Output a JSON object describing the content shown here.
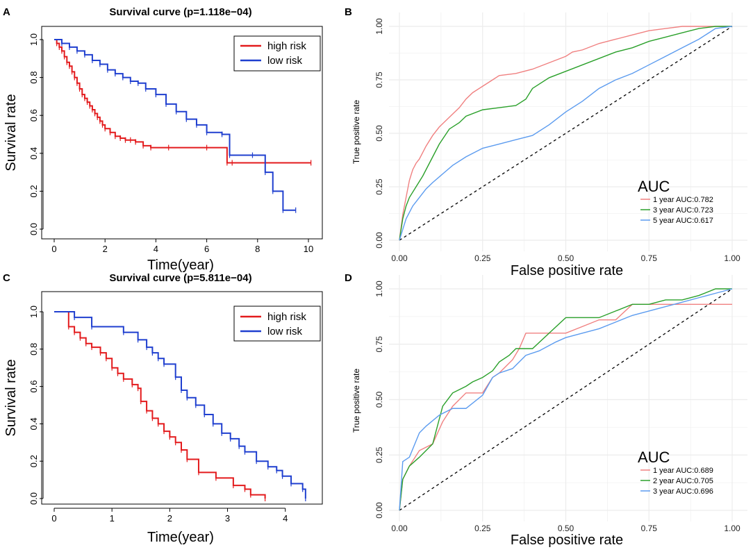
{
  "colors": {
    "high_risk": "#e31a1c",
    "low_risk": "#1f3fcf",
    "roc1": "#f08080",
    "roc2": "#2aa02a",
    "roc3": "#5b9bef",
    "grid": "#ececec",
    "panel_bg": "#ffffff"
  },
  "chart_data": [
    {
      "panel": "A",
      "type": "line",
      "subtype": "kaplan-meier",
      "title": "Survival curve (p=1.118e−04)",
      "xlabel": "Time(year)",
      "ylabel": "Survival rate",
      "xlim": [
        0,
        10
      ],
      "ylim": [
        0,
        1
      ],
      "xticks": [
        "0",
        "2",
        "4",
        "6",
        "8",
        "10"
      ],
      "yticks": [
        "0.0",
        "0.2",
        "0.4",
        "0.6",
        "0.8",
        "1.0"
      ],
      "legend_position": "top-right",
      "series": [
        {
          "name": "high risk",
          "color_key": "high_risk",
          "x": [
            0,
            0.1,
            0.2,
            0.3,
            0.4,
            0.5,
            0.6,
            0.7,
            0.8,
            0.9,
            1.0,
            1.1,
            1.2,
            1.3,
            1.4,
            1.5,
            1.6,
            1.7,
            1.8,
            1.9,
            2.0,
            2.2,
            2.4,
            2.6,
            2.8,
            3.0,
            3.2,
            3.5,
            3.8,
            4.5,
            6.0,
            6.8,
            7.0,
            10.1
          ],
          "y": [
            1.0,
            0.98,
            0.96,
            0.94,
            0.91,
            0.88,
            0.86,
            0.83,
            0.8,
            0.77,
            0.74,
            0.71,
            0.69,
            0.67,
            0.65,
            0.63,
            0.61,
            0.59,
            0.57,
            0.55,
            0.53,
            0.51,
            0.49,
            0.48,
            0.47,
            0.47,
            0.46,
            0.44,
            0.43,
            0.43,
            0.43,
            0.35,
            0.35,
            0.35
          ]
        },
        {
          "name": "low risk",
          "color_key": "low_risk",
          "x": [
            0,
            0.3,
            0.6,
            0.9,
            1.2,
            1.5,
            1.8,
            2.1,
            2.4,
            2.7,
            3.0,
            3.3,
            3.6,
            4.0,
            4.4,
            4.8,
            5.2,
            5.6,
            6.0,
            6.6,
            6.9,
            7.8,
            8.3,
            8.6,
            9.0,
            9.5
          ],
          "y": [
            1.0,
            0.98,
            0.96,
            0.94,
            0.92,
            0.89,
            0.87,
            0.84,
            0.82,
            0.8,
            0.78,
            0.77,
            0.74,
            0.71,
            0.66,
            0.62,
            0.58,
            0.55,
            0.51,
            0.5,
            0.39,
            0.39,
            0.3,
            0.2,
            0.1,
            0.1
          ]
        }
      ]
    },
    {
      "panel": "B",
      "type": "line",
      "subtype": "roc",
      "xlabel": "False positive rate",
      "ylabel": "True positive rate",
      "xlim": [
        0,
        1
      ],
      "ylim": [
        0,
        1
      ],
      "xticks": [
        "0.00",
        "0.25",
        "0.50",
        "0.75",
        "1.00"
      ],
      "yticks": [
        "0.00",
        "0.25",
        "0.50",
        "0.75",
        "1.00"
      ],
      "auc_title": "AUC",
      "legend_position": "bottom-right",
      "series": [
        {
          "name": "1 year AUC:0.782",
          "color_key": "roc1",
          "x": [
            0,
            0.01,
            0.02,
            0.03,
            0.04,
            0.05,
            0.06,
            0.07,
            0.08,
            0.1,
            0.12,
            0.14,
            0.16,
            0.18,
            0.2,
            0.22,
            0.25,
            0.28,
            0.3,
            0.35,
            0.4,
            0.45,
            0.5,
            0.52,
            0.55,
            0.6,
            0.65,
            0.7,
            0.75,
            0.8,
            0.85,
            0.9,
            0.95,
            1.0
          ],
          "y": [
            0,
            0.12,
            0.2,
            0.28,
            0.33,
            0.36,
            0.38,
            0.41,
            0.44,
            0.49,
            0.53,
            0.56,
            0.59,
            0.62,
            0.66,
            0.69,
            0.72,
            0.75,
            0.77,
            0.78,
            0.8,
            0.83,
            0.86,
            0.88,
            0.89,
            0.92,
            0.94,
            0.96,
            0.98,
            0.99,
            1.0,
            1.0,
            1.0,
            1.0
          ]
        },
        {
          "name": "3 year AUC:0.723",
          "color_key": "roc2",
          "x": [
            0,
            0.01,
            0.02,
            0.03,
            0.05,
            0.07,
            0.1,
            0.12,
            0.15,
            0.18,
            0.2,
            0.25,
            0.3,
            0.35,
            0.38,
            0.4,
            0.45,
            0.5,
            0.55,
            0.6,
            0.65,
            0.7,
            0.75,
            0.8,
            0.85,
            0.9,
            0.95,
            1.0
          ],
          "y": [
            0,
            0.1,
            0.16,
            0.2,
            0.25,
            0.3,
            0.39,
            0.45,
            0.52,
            0.55,
            0.58,
            0.61,
            0.62,
            0.63,
            0.66,
            0.71,
            0.76,
            0.79,
            0.82,
            0.85,
            0.88,
            0.9,
            0.93,
            0.95,
            0.97,
            0.99,
            1.0,
            1.0
          ]
        },
        {
          "name": "5 year AUC:0.617",
          "color_key": "roc3",
          "x": [
            0,
            0.01,
            0.02,
            0.04,
            0.06,
            0.08,
            0.1,
            0.13,
            0.16,
            0.2,
            0.25,
            0.3,
            0.35,
            0.4,
            0.45,
            0.5,
            0.55,
            0.6,
            0.65,
            0.7,
            0.75,
            0.8,
            0.85,
            0.9,
            0.93,
            0.95,
            1.0
          ],
          "y": [
            0,
            0.05,
            0.1,
            0.16,
            0.2,
            0.24,
            0.27,
            0.31,
            0.35,
            0.39,
            0.43,
            0.45,
            0.47,
            0.49,
            0.54,
            0.6,
            0.65,
            0.71,
            0.75,
            0.78,
            0.82,
            0.86,
            0.9,
            0.94,
            0.97,
            0.99,
            1.0
          ]
        }
      ]
    },
    {
      "panel": "C",
      "type": "line",
      "subtype": "kaplan-meier",
      "title": "Survival curve (p=5.811e−04)",
      "xlabel": "Time(year)",
      "ylabel": "Survival rate",
      "xlim": [
        0,
        4.4
      ],
      "ylim": [
        0,
        1
      ],
      "xticks": [
        "0",
        "1",
        "2",
        "3",
        "4"
      ],
      "yticks": [
        "0.0",
        "0.2",
        "0.4",
        "0.6",
        "0.8",
        "1.0"
      ],
      "legend_position": "top-right",
      "series": [
        {
          "name": "high risk",
          "color_key": "high_risk",
          "x": [
            0,
            0.25,
            0.35,
            0.45,
            0.55,
            0.65,
            0.8,
            0.9,
            1.0,
            1.1,
            1.2,
            1.35,
            1.45,
            1.5,
            1.6,
            1.7,
            1.8,
            1.9,
            2.0,
            2.1,
            2.2,
            2.3,
            2.5,
            2.8,
            3.1,
            3.3,
            3.4,
            3.65
          ],
          "y": [
            1.0,
            0.92,
            0.89,
            0.86,
            0.83,
            0.81,
            0.78,
            0.75,
            0.7,
            0.67,
            0.64,
            0.61,
            0.59,
            0.52,
            0.47,
            0.43,
            0.4,
            0.36,
            0.33,
            0.3,
            0.26,
            0.21,
            0.14,
            0.11,
            0.07,
            0.05,
            0.02,
            0.0
          ]
        },
        {
          "name": "low risk",
          "color_key": "low_risk",
          "x": [
            0,
            0.35,
            0.65,
            1.2,
            1.45,
            1.6,
            1.7,
            1.8,
            1.9,
            2.1,
            2.2,
            2.3,
            2.45,
            2.6,
            2.75,
            2.9,
            3.05,
            3.2,
            3.3,
            3.5,
            3.7,
            3.85,
            3.95,
            4.1,
            4.3,
            4.35
          ],
          "y": [
            1.0,
            0.97,
            0.92,
            0.89,
            0.85,
            0.81,
            0.78,
            0.75,
            0.72,
            0.65,
            0.58,
            0.54,
            0.5,
            0.45,
            0.4,
            0.35,
            0.32,
            0.28,
            0.25,
            0.2,
            0.17,
            0.15,
            0.12,
            0.08,
            0.05,
            0.0
          ]
        }
      ]
    },
    {
      "panel": "D",
      "type": "line",
      "subtype": "roc",
      "xlabel": "False positive rate",
      "ylabel": "True positive rate",
      "xlim": [
        0,
        1
      ],
      "ylim": [
        0,
        1
      ],
      "xticks": [
        "0.00",
        "0.25",
        "0.50",
        "0.75",
        "1.00"
      ],
      "yticks": [
        "0.00",
        "0.25",
        "0.50",
        "0.75",
        "1.00"
      ],
      "auc_title": "AUC",
      "legend_position": "bottom-right",
      "series": [
        {
          "name": "1 year AUC:0.689",
          "color_key": "roc1",
          "x": [
            0,
            0.01,
            0.03,
            0.06,
            0.1,
            0.13,
            0.16,
            0.2,
            0.22,
            0.25,
            0.28,
            0.3,
            0.32,
            0.34,
            0.36,
            0.38,
            0.4,
            0.45,
            0.5,
            0.55,
            0.6,
            0.65,
            0.7,
            0.75,
            0.8,
            0.85,
            0.9,
            0.95,
            1.0
          ],
          "y": [
            0,
            0.14,
            0.2,
            0.27,
            0.3,
            0.4,
            0.47,
            0.53,
            0.53,
            0.53,
            0.6,
            0.62,
            0.65,
            0.68,
            0.73,
            0.8,
            0.8,
            0.8,
            0.8,
            0.83,
            0.86,
            0.86,
            0.93,
            0.93,
            0.93,
            0.93,
            0.93,
            0.93,
            0.93
          ]
        },
        {
          "name": "2 year AUC:0.705",
          "color_key": "roc2",
          "x": [
            0,
            0.01,
            0.03,
            0.06,
            0.1,
            0.13,
            0.16,
            0.2,
            0.22,
            0.25,
            0.28,
            0.3,
            0.33,
            0.35,
            0.4,
            0.45,
            0.5,
            0.55,
            0.6,
            0.65,
            0.7,
            0.75,
            0.8,
            0.85,
            0.9,
            0.95,
            1.0
          ],
          "y": [
            0,
            0.14,
            0.2,
            0.24,
            0.3,
            0.47,
            0.53,
            0.56,
            0.58,
            0.6,
            0.63,
            0.67,
            0.7,
            0.73,
            0.73,
            0.8,
            0.87,
            0.87,
            0.87,
            0.9,
            0.93,
            0.93,
            0.95,
            0.95,
            0.97,
            1.0,
            1.0
          ]
        },
        {
          "name": "3 year AUC:0.696",
          "color_key": "roc3",
          "x": [
            0,
            0.01,
            0.03,
            0.06,
            0.08,
            0.12,
            0.16,
            0.2,
            0.25,
            0.28,
            0.3,
            0.34,
            0.38,
            0.42,
            0.47,
            0.5,
            0.55,
            0.6,
            0.65,
            0.7,
            0.75,
            0.8,
            0.85,
            0.9,
            0.95,
            1.0
          ],
          "y": [
            0,
            0.22,
            0.24,
            0.35,
            0.38,
            0.43,
            0.46,
            0.46,
            0.52,
            0.6,
            0.62,
            0.64,
            0.7,
            0.72,
            0.76,
            0.78,
            0.8,
            0.82,
            0.85,
            0.88,
            0.9,
            0.92,
            0.94,
            0.96,
            0.98,
            1.0
          ]
        }
      ]
    }
  ]
}
